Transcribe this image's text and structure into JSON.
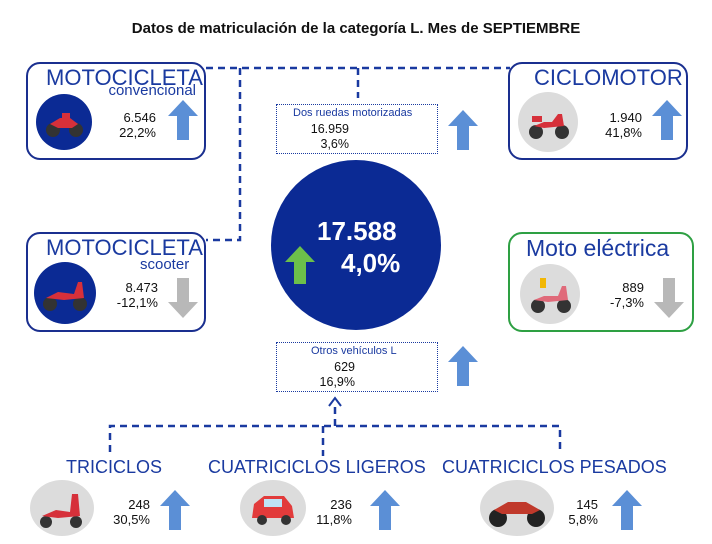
{
  "title": "Datos de matriculación de la categoría L. Mes de SEPTIEMBRE",
  "center": {
    "total": "17.588",
    "change": "4,0%",
    "trend": "up",
    "trend_color": "#6cc04a"
  },
  "colors": {
    "navy": "#0b2a94",
    "border_blue": "#1a2f8f",
    "border_green": "#2ea043",
    "arrow_up": "#5b8fd6",
    "arrow_down": "#b8b8b8"
  },
  "cards": {
    "moto_conv": {
      "title": "MOTOCICLETA",
      "subtitle": "convencional",
      "units": "6.546",
      "change": "22,2%",
      "trend": "up",
      "icon": "motorcycle-icon"
    },
    "ciclomotor": {
      "title": "CICLOMOTOR",
      "units": "1.940",
      "change": "41,8%",
      "trend": "up",
      "icon": "moped-icon"
    },
    "moto_scooter": {
      "title": "MOTOCICLETA",
      "subtitle": "scooter",
      "units": "8.473",
      "change": "-12,1%",
      "trend": "down",
      "icon": "scooter-icon"
    },
    "moto_electrica": {
      "title": "Moto eléctrica",
      "units": "889",
      "change": "-7,3%",
      "trend": "down",
      "icon": "electric-moto-icon"
    }
  },
  "boxes": {
    "dos_ruedas": {
      "label": "Dos ruedas motorizadas",
      "units": "16.959",
      "change": "3,6%",
      "trend": "up"
    },
    "otros": {
      "label": "Otros vehículos L",
      "units": "629",
      "change": "16,9%",
      "trend": "up"
    }
  },
  "bottom": {
    "triciclos": {
      "title": "TRICICLOS",
      "units": "248",
      "change": "30,5%",
      "trend": "up",
      "icon": "tricycle-icon"
    },
    "cuatri_ligeros": {
      "title": "CUATRICICLOS LIGEROS",
      "units": "236",
      "change": "11,8%",
      "trend": "up",
      "icon": "microcar-icon"
    },
    "cuatri_pesados": {
      "title": "CUATRICICLOS PESADOS",
      "units": "145",
      "change": "5,8%",
      "trend": "up",
      "icon": "quad-icon"
    }
  }
}
